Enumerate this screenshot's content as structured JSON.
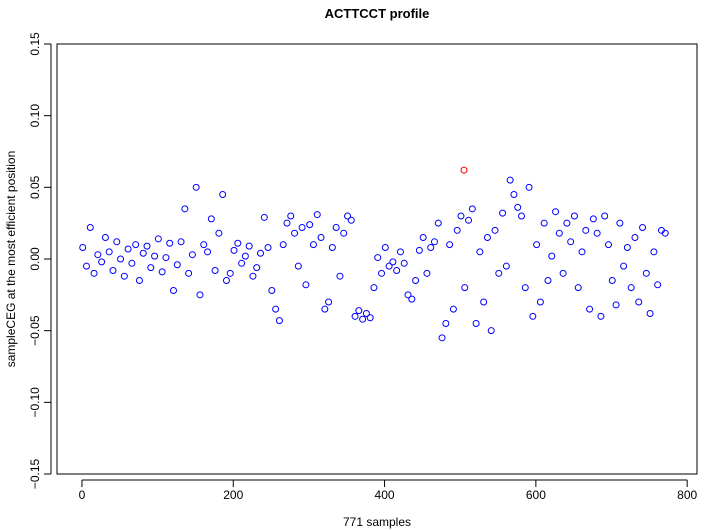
{
  "chart_data": {
    "type": "scatter",
    "title": "ACTTCCT profile",
    "xlabel": "771 samples",
    "ylabel": "sampleCEG at the most efficient position",
    "xlim": [
      -33,
      813
    ],
    "ylim": [
      -0.15,
      0.15
    ],
    "xticks": [
      0,
      200,
      400,
      600,
      800
    ],
    "yticks": [
      {
        "value": -0.15,
        "label": "−0.15"
      },
      {
        "value": -0.1,
        "label": "−0.10"
      },
      {
        "value": -0.05,
        "label": "−0.05"
      },
      {
        "value": 0,
        "label": "0.00"
      },
      0.05,
      {
        "value": 0.1,
        "label": "0.10"
      },
      0.15
    ],
    "series": [
      {
        "color": "#0000ff",
        "x": [
          1,
          6,
          11,
          16,
          21,
          26,
          31,
          36,
          41,
          46,
          51,
          56,
          61,
          66,
          71,
          76,
          81,
          86,
          91,
          96,
          101,
          106,
          111,
          116,
          121,
          126,
          131,
          136,
          141,
          146,
          151,
          156,
          161,
          166,
          171,
          176,
          181,
          186,
          191,
          196,
          201,
          206,
          211,
          216,
          221,
          226,
          231,
          236,
          241,
          246,
          251,
          256,
          261,
          266,
          271,
          276,
          281,
          286,
          291,
          296,
          301,
          306,
          311,
          316,
          321,
          326,
          331,
          336,
          341,
          346,
          351,
          356,
          361,
          366,
          371,
          376,
          381,
          386,
          391,
          396,
          401,
          406,
          411,
          416,
          421,
          426,
          431,
          436,
          441,
          446,
          451,
          456,
          461,
          466,
          471,
          476,
          481,
          486,
          491,
          496,
          501,
          506,
          511,
          516,
          521,
          526,
          531,
          536,
          541,
          546,
          551,
          556,
          561,
          566,
          571,
          576,
          581,
          586,
          591,
          596,
          601,
          606,
          611,
          616,
          621,
          626,
          631,
          636,
          641,
          646,
          651,
          656,
          661,
          666,
          671,
          676,
          681,
          686,
          691,
          696,
          701,
          706,
          711,
          716,
          721,
          726,
          731,
          736,
          741,
          746,
          751,
          756,
          761,
          766,
          771
        ],
        "values": [
          0.008,
          -0.005,
          0.022,
          -0.01,
          0.003,
          -0.002,
          0.015,
          0.005,
          -0.008,
          0.012,
          0.0,
          -0.012,
          0.007,
          -0.003,
          0.01,
          -0.015,
          0.004,
          0.009,
          -0.006,
          0.002,
          0.014,
          -0.009,
          0.001,
          0.011,
          -0.022,
          -0.004,
          0.012,
          0.035,
          -0.01,
          0.003,
          0.05,
          -0.025,
          0.01,
          0.005,
          0.028,
          -0.008,
          0.018,
          0.045,
          -0.015,
          -0.01,
          0.006,
          0.011,
          -0.003,
          0.002,
          0.009,
          -0.012,
          -0.006,
          0.004,
          0.029,
          0.008,
          -0.022,
          -0.035,
          -0.043,
          0.01,
          0.025,
          0.03,
          0.018,
          -0.005,
          0.022,
          -0.018,
          0.024,
          0.01,
          0.031,
          0.015,
          -0.035,
          -0.03,
          0.008,
          0.022,
          -0.012,
          0.018,
          0.03,
          0.027,
          -0.04,
          -0.036,
          -0.042,
          -0.038,
          -0.041,
          -0.02,
          0.001,
          -0.01,
          0.008,
          -0.005,
          -0.002,
          -0.008,
          0.005,
          -0.003,
          -0.025,
          -0.028,
          -0.015,
          0.006,
          0.015,
          -0.01,
          0.008,
          0.012,
          0.025,
          -0.055,
          -0.045,
          0.01,
          -0.035,
          0.02,
          0.03,
          -0.02,
          0.027,
          0.035,
          -0.045,
          0.005,
          -0.03,
          0.015,
          -0.05,
          0.02,
          -0.01,
          0.032,
          -0.005,
          0.055,
          0.045,
          0.036,
          0.03,
          -0.02,
          0.05,
          -0.04,
          0.01,
          -0.03,
          0.025,
          -0.015,
          0.002,
          0.033,
          0.018,
          -0.01,
          0.025,
          0.012,
          0.03,
          -0.02,
          0.005,
          0.02,
          -0.035,
          0.028,
          0.018,
          -0.04,
          0.03,
          0.01,
          -0.015,
          -0.032,
          0.025,
          -0.005,
          0.008,
          -0.02,
          0.015,
          -0.03,
          0.022,
          -0.01,
          -0.038,
          0.005,
          -0.018,
          0.02,
          0.018
        ]
      },
      {
        "color": "#ff0000",
        "x": [
          505
        ],
        "values": [
          0.062
        ]
      }
    ]
  }
}
